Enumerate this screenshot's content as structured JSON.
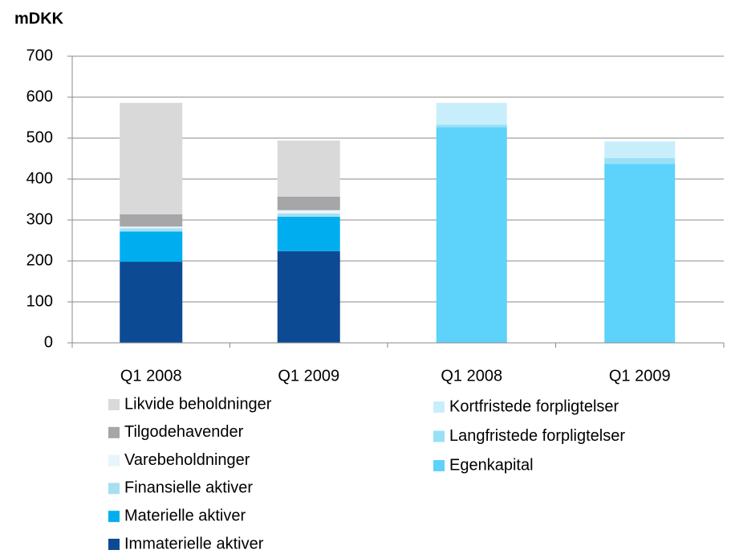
{
  "chart_data": [
    {
      "type": "bar",
      "stacked": true,
      "ylabel": "mDKK",
      "ylim": [
        0,
        700
      ],
      "yticks": [
        0,
        100,
        200,
        300,
        400,
        500,
        600,
        700
      ],
      "grid": true,
      "categories": [
        "Q1 2008",
        "Q1 2009"
      ],
      "series": [
        {
          "name": "Immaterielle aktiver",
          "color": "#0d4a94",
          "values": [
            198,
            224
          ]
        },
        {
          "name": "Materielle aktiver",
          "color": "#00aeef",
          "values": [
            74,
            84
          ]
        },
        {
          "name": "Finansielle aktiver",
          "color": "#a6dff2",
          "values": [
            8,
            8
          ]
        },
        {
          "name": "Varebeholdninger",
          "color": "#e6f5fb",
          "values": [
            4,
            8
          ]
        },
        {
          "name": "Tilgodehavender",
          "color": "#a6a6a8",
          "values": [
            30,
            33
          ]
        },
        {
          "name": "Likvide beholdninger",
          "color": "#d9d9d9",
          "values": [
            272,
            137
          ]
        }
      ]
    },
    {
      "type": "bar",
      "stacked": true,
      "categories": [
        "Q1 2008",
        "Q1 2009"
      ],
      "series": [
        {
          "name": "Egenkapital",
          "color": "#5dd2fb",
          "values": [
            527,
            437
          ]
        },
        {
          "name": "Langfristede forpligtelser",
          "color": "#99e0f7",
          "values": [
            6,
            14
          ]
        },
        {
          "name": "Kortfristede forpligtelser",
          "color": "#c9eefb",
          "values": [
            53,
            41
          ]
        }
      ]
    }
  ]
}
